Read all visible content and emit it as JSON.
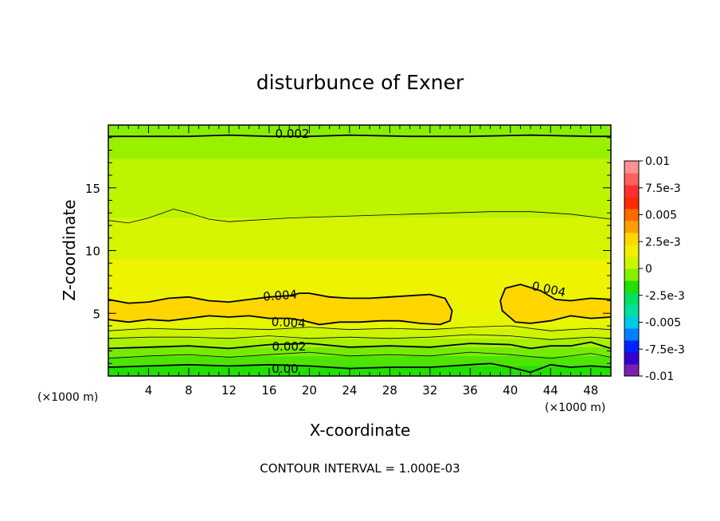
{
  "chart_data": {
    "type": "heatmap",
    "title": "disturbunce of Exner",
    "xlabel": "X-coordinate",
    "ylabel": "Z-coordinate",
    "x_unit": "(×1000 m)",
    "y_unit": "(×1000 m)",
    "xlim": [
      0,
      50
    ],
    "ylim": [
      0,
      20
    ],
    "x_ticks": [
      4,
      8,
      12,
      16,
      20,
      24,
      28,
      32,
      36,
      40,
      44,
      48
    ],
    "y_ticks": [
      5,
      10,
      15
    ],
    "contour_interval_text": "CONTOUR INTERVAL = 1.000E-03",
    "colorbar": {
      "labels": [
        "0.01",
        "7.5e-3",
        "0.005",
        "2.5e-3",
        "0",
        "-2.5e-3",
        "-0.005",
        "-7.5e-3",
        "-0.01"
      ],
      "min": -0.01,
      "max": 0.01,
      "colors": [
        "#7a1fb0",
        "#3300cc",
        "#0022ff",
        "#0080ff",
        "#00c8e8",
        "#00e0a0",
        "#00e060",
        "#22e000",
        "#88ef00",
        "#ccf500",
        "#f0f000",
        "#ffd600",
        "#ffa000",
        "#ff6a00",
        "#ff2a00",
        "#ff3030",
        "#ff6060",
        "#ff9090"
      ]
    },
    "contour_labels": [
      "0.002",
      "0.004",
      "0.004",
      "0.004",
      "0.002",
      "0.00"
    ],
    "contours": [
      {
        "level": 0.002,
        "labeled": true,
        "x": [
          0,
          8,
          12,
          16,
          20,
          24,
          30,
          36,
          42,
          48,
          50
        ],
        "y": [
          19.1,
          19.1,
          19.2,
          19.1,
          19.1,
          19.2,
          19.1,
          19.1,
          19.2,
          19.1,
          19.1
        ]
      },
      {
        "level": 0.003,
        "labeled": false,
        "x": [
          0,
          2,
          4,
          6.5,
          8,
          10,
          12,
          14,
          18,
          22,
          26,
          30,
          34,
          38,
          42,
          46,
          50
        ],
        "y": [
          12.4,
          12.2,
          12.6,
          13.3,
          13,
          12.5,
          12.3,
          12.4,
          12.6,
          12.7,
          12.8,
          12.9,
          13,
          13.1,
          13.1,
          12.9,
          12.5
        ]
      },
      {
        "level": 0.004,
        "labeled": true,
        "x": [
          0,
          2,
          4,
          6,
          8,
          10,
          12,
          14,
          16,
          18,
          19,
          20,
          22,
          24,
          26,
          28,
          30,
          32,
          33.5,
          34.2,
          34.0,
          33,
          31,
          29,
          27,
          25,
          23,
          21,
          19.5,
          18,
          16,
          14,
          12,
          10,
          8,
          6,
          4,
          2,
          0
        ],
        "y": [
          6.1,
          5.8,
          5.9,
          6.2,
          6.3,
          6.0,
          5.9,
          6.1,
          6.3,
          6.4,
          6.6,
          6.6,
          6.3,
          6.2,
          6.2,
          6.3,
          6.4,
          6.5,
          6.2,
          5.2,
          4.4,
          4.1,
          4.2,
          4.4,
          4.4,
          4.3,
          4.3,
          4.1,
          4.4,
          4.6,
          4.6,
          4.8,
          4.7,
          4.8,
          4.6,
          4.4,
          4.5,
          4.3,
          4.5
        ]
      },
      {
        "level": 0.004,
        "labeled": true,
        "x": [
          50,
          48,
          46,
          44.5,
          43,
          41,
          39.5,
          39.0,
          39.2,
          40.5,
          42,
          44,
          46,
          48,
          50
        ],
        "y": [
          6.1,
          6.2,
          6.0,
          6.1,
          6.8,
          7.3,
          7.0,
          6.0,
          5.2,
          4.3,
          4.2,
          4.4,
          4.8,
          4.6,
          4.7
        ]
      },
      {
        "level": 0.003,
        "labeled": false,
        "x": [
          0,
          4,
          8,
          12,
          16,
          20,
          24,
          28,
          32,
          36,
          40,
          44,
          48,
          50
        ],
        "y": [
          3.6,
          3.8,
          3.7,
          3.8,
          3.7,
          3.9,
          3.7,
          3.8,
          3.7,
          3.9,
          4.0,
          3.6,
          3.8,
          3.7
        ]
      },
      {
        "level": 0.0025,
        "labeled": false,
        "x": [
          0,
          4,
          8,
          12,
          16,
          20,
          24,
          28,
          32,
          36,
          40,
          44,
          48,
          50
        ],
        "y": [
          3.0,
          3.1,
          3.1,
          3.0,
          3.2,
          3.0,
          3.1,
          3.0,
          3.1,
          3.3,
          3.2,
          2.9,
          3.1,
          3.0
        ]
      },
      {
        "level": 0.002,
        "labeled": true,
        "x": [
          0,
          4,
          8,
          12,
          16,
          20,
          24,
          28,
          32,
          36,
          40,
          42,
          44,
          46,
          48,
          50
        ],
        "y": [
          2.2,
          2.3,
          2.4,
          2.2,
          2.5,
          2.6,
          2.3,
          2.4,
          2.3,
          2.6,
          2.5,
          2.2,
          2.4,
          2.4,
          2.7,
          2.2
        ]
      },
      {
        "level": 0.0015,
        "labeled": false,
        "x": [
          0,
          4,
          8,
          12,
          16,
          20,
          24,
          28,
          32,
          36,
          40,
          44,
          48,
          50
        ],
        "y": [
          1.4,
          1.6,
          1.7,
          1.5,
          1.7,
          1.9,
          1.6,
          1.7,
          1.6,
          1.9,
          1.7,
          1.4,
          1.8,
          1.5
        ]
      },
      {
        "level": 0.0,
        "labeled": true,
        "x": [
          0,
          4,
          8,
          12,
          16,
          20,
          24,
          28,
          32,
          36,
          38,
          40,
          42,
          44,
          46,
          48,
          50
        ],
        "y": [
          0.7,
          0.8,
          0.9,
          0.8,
          0.9,
          0.8,
          0.6,
          0.7,
          0.7,
          0.9,
          1.0,
          0.7,
          0.3,
          0.9,
          0.7,
          0.8,
          0.7
        ]
      }
    ],
    "bands": [
      {
        "color": "#88ef00",
        "from": 19.1,
        "to": 20
      },
      {
        "color": "#99f100",
        "from": 17.3,
        "to": 19.1
      },
      {
        "color": "#bdf400",
        "from": 12.6,
        "to": 17.3
      },
      {
        "color": "#d6f400",
        "from": 9.3,
        "to": 12.6
      },
      {
        "color": "#eef300",
        "from": 5.2,
        "to": 9.3
      },
      {
        "color": "#e6f500",
        "from": 3.8,
        "to": 5.2
      },
      {
        "color": "#cdf400",
        "from": 3.0,
        "to": 3.8
      },
      {
        "color": "#a8f000",
        "from": 2.3,
        "to": 3.0
      },
      {
        "color": "#78ea00",
        "from": 1.6,
        "to": 2.3
      },
      {
        "color": "#4ee400",
        "from": 0.8,
        "to": 1.6
      },
      {
        "color": "#22e000",
        "from": 0,
        "to": 0.8
      }
    ],
    "blob_color": "#ffd600"
  }
}
